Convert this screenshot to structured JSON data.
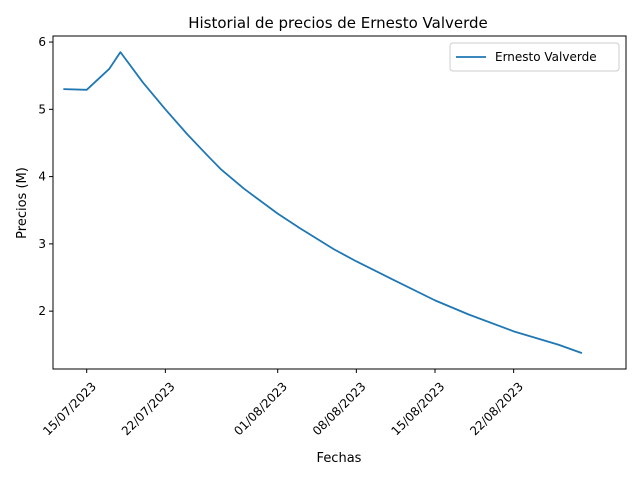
{
  "chart_data": {
    "type": "line",
    "title": "Historial de precios de Ernesto Valverde",
    "xlabel": "Fechas",
    "ylabel": "Precios (M)",
    "x_axis_type": "date",
    "xlim": [
      "2023-07-12",
      "2023-09-01"
    ],
    "ylim": [
      1.14,
      6.09
    ],
    "x_ticks": [
      {
        "date": "2023-07-15",
        "label": "15/07/2023"
      },
      {
        "date": "2023-07-22",
        "label": "22/07/2023"
      },
      {
        "date": "2023-08-01",
        "label": "01/08/2023"
      },
      {
        "date": "2023-08-08",
        "label": "08/08/2023"
      },
      {
        "date": "2023-08-15",
        "label": "15/08/2023"
      },
      {
        "date": "2023-08-22",
        "label": "22/08/2023"
      }
    ],
    "y_ticks": [
      {
        "value": 2,
        "label": "2"
      },
      {
        "value": 3,
        "label": "3"
      },
      {
        "value": 4,
        "label": "4"
      },
      {
        "value": 5,
        "label": "5"
      },
      {
        "value": 6,
        "label": "6"
      }
    ],
    "grid": false,
    "legend_position": "top-right",
    "series": [
      {
        "name": "Ernesto Valverde",
        "color": "#1f77b4",
        "points": [
          {
            "x": "2023-07-13",
            "y": 5.3
          },
          {
            "x": "2023-07-15",
            "y": 5.29
          },
          {
            "x": "2023-07-17",
            "y": 5.6
          },
          {
            "x": "2023-07-18",
            "y": 5.85
          },
          {
            "x": "2023-07-20",
            "y": 5.4
          },
          {
            "x": "2023-07-22",
            "y": 5.0
          },
          {
            "x": "2023-07-24",
            "y": 4.62
          },
          {
            "x": "2023-07-26",
            "y": 4.27
          },
          {
            "x": "2023-07-27",
            "y": 4.1
          },
          {
            "x": "2023-07-29",
            "y": 3.82
          },
          {
            "x": "2023-08-01",
            "y": 3.45
          },
          {
            "x": "2023-08-03",
            "y": 3.23
          },
          {
            "x": "2023-08-06",
            "y": 2.92
          },
          {
            "x": "2023-08-08",
            "y": 2.74
          },
          {
            "x": "2023-08-11",
            "y": 2.49
          },
          {
            "x": "2023-08-15",
            "y": 2.16
          },
          {
            "x": "2023-08-18",
            "y": 1.95
          },
          {
            "x": "2023-08-22",
            "y": 1.7
          },
          {
            "x": "2023-08-26",
            "y": 1.5
          },
          {
            "x": "2023-08-28",
            "y": 1.38
          }
        ]
      }
    ]
  }
}
